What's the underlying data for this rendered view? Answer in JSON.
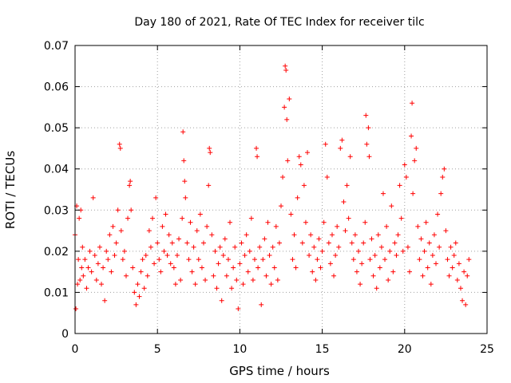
{
  "chart_data": {
    "type": "scatter",
    "title": "Day 180 of 2021, Rate Of TEC Index for receiver tilc",
    "xlabel": "GPS time / hours",
    "ylabel": "ROTI / TECUs",
    "xlim": [
      0,
      25
    ],
    "ylim": [
      0,
      0.07
    ],
    "xticks": [
      "0",
      "5",
      "10",
      "15",
      "20",
      "25"
    ],
    "yticks": [
      "0",
      "0.01",
      "0.02",
      "0.03",
      "0.04",
      "0.05",
      "0.06",
      "0.07"
    ],
    "grid": true,
    "legend": "none",
    "marker": "plus",
    "color": "#ff0000",
    "series": [
      {
        "values": [
          [
            0.0,
            0.024
          ],
          [
            0.05,
            0.006
          ],
          [
            0.1,
            0.031
          ],
          [
            0.15,
            0.012
          ],
          [
            0.2,
            0.018
          ],
          [
            0.25,
            0.028
          ],
          [
            0.3,
            0.013
          ],
          [
            0.35,
            0.03
          ],
          [
            0.4,
            0.016
          ],
          [
            0.45,
            0.021
          ],
          [
            0.5,
            0.014
          ],
          [
            0.6,
            0.018
          ],
          [
            0.7,
            0.011
          ],
          [
            0.8,
            0.016
          ],
          [
            0.9,
            0.02
          ],
          [
            1.0,
            0.015
          ],
          [
            1.1,
            0.033
          ],
          [
            1.2,
            0.019
          ],
          [
            1.3,
            0.013
          ],
          [
            1.4,
            0.017
          ],
          [
            1.5,
            0.021
          ],
          [
            1.6,
            0.012
          ],
          [
            1.7,
            0.016
          ],
          [
            1.8,
            0.008
          ],
          [
            1.9,
            0.02
          ],
          [
            2.0,
            0.018
          ],
          [
            2.1,
            0.024
          ],
          [
            2.2,
            0.015
          ],
          [
            2.3,
            0.026
          ],
          [
            2.4,
            0.019
          ],
          [
            2.5,
            0.022
          ],
          [
            2.6,
            0.03
          ],
          [
            2.7,
            0.046
          ],
          [
            2.75,
            0.045
          ],
          [
            2.8,
            0.025
          ],
          [
            2.9,
            0.018
          ],
          [
            3.0,
            0.02
          ],
          [
            3.1,
            0.014
          ],
          [
            3.2,
            0.028
          ],
          [
            3.3,
            0.036
          ],
          [
            3.35,
            0.037
          ],
          [
            3.4,
            0.03
          ],
          [
            3.5,
            0.016
          ],
          [
            3.6,
            0.01
          ],
          [
            3.7,
            0.007
          ],
          [
            3.8,
            0.012
          ],
          [
            3.9,
            0.009
          ],
          [
            4.0,
            0.015
          ],
          [
            4.1,
            0.018
          ],
          [
            4.2,
            0.011
          ],
          [
            4.3,
            0.019
          ],
          [
            4.4,
            0.014
          ],
          [
            4.5,
            0.025
          ],
          [
            4.6,
            0.021
          ],
          [
            4.7,
            0.028
          ],
          [
            4.8,
            0.017
          ],
          [
            4.9,
            0.033
          ],
          [
            5.0,
            0.022
          ],
          [
            5.1,
            0.018
          ],
          [
            5.2,
            0.015
          ],
          [
            5.3,
            0.026
          ],
          [
            5.4,
            0.02
          ],
          [
            5.5,
            0.029
          ],
          [
            5.6,
            0.019
          ],
          [
            5.7,
            0.024
          ],
          [
            5.8,
            0.017
          ],
          [
            5.9,
            0.022
          ],
          [
            6.0,
            0.016
          ],
          [
            6.1,
            0.012
          ],
          [
            6.2,
            0.019
          ],
          [
            6.3,
            0.023
          ],
          [
            6.4,
            0.013
          ],
          [
            6.5,
            0.028
          ],
          [
            6.55,
            0.049
          ],
          [
            6.6,
            0.042
          ],
          [
            6.65,
            0.037
          ],
          [
            6.7,
            0.033
          ],
          [
            6.8,
            0.022
          ],
          [
            6.9,
            0.018
          ],
          [
            7.0,
            0.027
          ],
          [
            7.1,
            0.015
          ],
          [
            7.2,
            0.021
          ],
          [
            7.3,
            0.012
          ],
          [
            7.4,
            0.025
          ],
          [
            7.5,
            0.018
          ],
          [
            7.6,
            0.029
          ],
          [
            7.7,
            0.016
          ],
          [
            7.8,
            0.022
          ],
          [
            7.9,
            0.013
          ],
          [
            8.0,
            0.026
          ],
          [
            8.1,
            0.036
          ],
          [
            8.15,
            0.045
          ],
          [
            8.2,
            0.044
          ],
          [
            8.3,
            0.024
          ],
          [
            8.4,
            0.014
          ],
          [
            8.5,
            0.02
          ],
          [
            8.6,
            0.011
          ],
          [
            8.7,
            0.017
          ],
          [
            8.8,
            0.021
          ],
          [
            8.9,
            0.008
          ],
          [
            9.0,
            0.019
          ],
          [
            9.1,
            0.023
          ],
          [
            9.2,
            0.014
          ],
          [
            9.3,
            0.018
          ],
          [
            9.4,
            0.027
          ],
          [
            9.5,
            0.011
          ],
          [
            9.6,
            0.016
          ],
          [
            9.7,
            0.021
          ],
          [
            9.8,
            0.013
          ],
          [
            9.9,
            0.006
          ],
          [
            10.0,
            0.017
          ],
          [
            10.1,
            0.022
          ],
          [
            10.2,
            0.012
          ],
          [
            10.3,
            0.019
          ],
          [
            10.4,
            0.024
          ],
          [
            10.5,
            0.015
          ],
          [
            10.6,
            0.02
          ],
          [
            10.7,
            0.028
          ],
          [
            10.8,
            0.013
          ],
          [
            10.9,
            0.018
          ],
          [
            11.0,
            0.045
          ],
          [
            11.05,
            0.043
          ],
          [
            11.1,
            0.016
          ],
          [
            11.2,
            0.021
          ],
          [
            11.3,
            0.007
          ],
          [
            11.4,
            0.018
          ],
          [
            11.5,
            0.023
          ],
          [
            11.6,
            0.014
          ],
          [
            11.7,
            0.027
          ],
          [
            11.8,
            0.019
          ],
          [
            11.9,
            0.012
          ],
          [
            12.0,
            0.021
          ],
          [
            12.1,
            0.016
          ],
          [
            12.2,
            0.026
          ],
          [
            12.3,
            0.013
          ],
          [
            12.4,
            0.022
          ],
          [
            12.5,
            0.031
          ],
          [
            12.6,
            0.038
          ],
          [
            12.7,
            0.055
          ],
          [
            12.75,
            0.065
          ],
          [
            12.8,
            0.064
          ],
          [
            12.85,
            0.052
          ],
          [
            12.9,
            0.042
          ],
          [
            13.0,
            0.057
          ],
          [
            13.1,
            0.029
          ],
          [
            13.2,
            0.018
          ],
          [
            13.3,
            0.024
          ],
          [
            13.4,
            0.016
          ],
          [
            13.5,
            0.033
          ],
          [
            13.6,
            0.043
          ],
          [
            13.7,
            0.041
          ],
          [
            13.8,
            0.022
          ],
          [
            13.9,
            0.036
          ],
          [
            14.0,
            0.027
          ],
          [
            14.1,
            0.044
          ],
          [
            14.2,
            0.019
          ],
          [
            14.3,
            0.024
          ],
          [
            14.4,
            0.015
          ],
          [
            14.5,
            0.021
          ],
          [
            14.6,
            0.013
          ],
          [
            14.7,
            0.018
          ],
          [
            14.8,
            0.023
          ],
          [
            14.9,
            0.016
          ],
          [
            15.0,
            0.02
          ],
          [
            15.1,
            0.027
          ],
          [
            15.2,
            0.046
          ],
          [
            15.3,
            0.038
          ],
          [
            15.4,
            0.022
          ],
          [
            15.5,
            0.017
          ],
          [
            15.6,
            0.024
          ],
          [
            15.7,
            0.014
          ],
          [
            15.8,
            0.019
          ],
          [
            15.9,
            0.026
          ],
          [
            16.0,
            0.021
          ],
          [
            16.1,
            0.045
          ],
          [
            16.2,
            0.047
          ],
          [
            16.3,
            0.032
          ],
          [
            16.4,
            0.025
          ],
          [
            16.5,
            0.036
          ],
          [
            16.6,
            0.028
          ],
          [
            16.7,
            0.043
          ],
          [
            16.8,
            0.022
          ],
          [
            16.9,
            0.018
          ],
          [
            17.0,
            0.024
          ],
          [
            17.1,
            0.015
          ],
          [
            17.2,
            0.02
          ],
          [
            17.3,
            0.012
          ],
          [
            17.4,
            0.017
          ],
          [
            17.5,
            0.022
          ],
          [
            17.6,
            0.027
          ],
          [
            17.65,
            0.053
          ],
          [
            17.7,
            0.046
          ],
          [
            17.8,
            0.05
          ],
          [
            17.85,
            0.043
          ],
          [
            17.9,
            0.018
          ],
          [
            18.0,
            0.023
          ],
          [
            18.1,
            0.014
          ],
          [
            18.2,
            0.019
          ],
          [
            18.3,
            0.011
          ],
          [
            18.4,
            0.024
          ],
          [
            18.5,
            0.016
          ],
          [
            18.6,
            0.021
          ],
          [
            18.7,
            0.034
          ],
          [
            18.8,
            0.018
          ],
          [
            18.9,
            0.026
          ],
          [
            19.0,
            0.013
          ],
          [
            19.1,
            0.02
          ],
          [
            19.2,
            0.031
          ],
          [
            19.3,
            0.015
          ],
          [
            19.4,
            0.022
          ],
          [
            19.5,
            0.019
          ],
          [
            19.6,
            0.024
          ],
          [
            19.7,
            0.036
          ],
          [
            19.8,
            0.028
          ],
          [
            19.9,
            0.02
          ],
          [
            20.0,
            0.041
          ],
          [
            20.1,
            0.038
          ],
          [
            20.2,
            0.021
          ],
          [
            20.3,
            0.015
          ],
          [
            20.4,
            0.048
          ],
          [
            20.45,
            0.056
          ],
          [
            20.5,
            0.034
          ],
          [
            20.6,
            0.042
          ],
          [
            20.7,
            0.045
          ],
          [
            20.8,
            0.026
          ],
          [
            20.9,
            0.018
          ],
          [
            21.0,
            0.023
          ],
          [
            21.1,
            0.014
          ],
          [
            21.2,
            0.02
          ],
          [
            21.3,
            0.027
          ],
          [
            21.4,
            0.016
          ],
          [
            21.5,
            0.022
          ],
          [
            21.6,
            0.012
          ],
          [
            21.7,
            0.019
          ],
          [
            21.8,
            0.024
          ],
          [
            21.9,
            0.017
          ],
          [
            22.0,
            0.029
          ],
          [
            22.1,
            0.021
          ],
          [
            22.2,
            0.034
          ],
          [
            22.3,
            0.038
          ],
          [
            22.4,
            0.04
          ],
          [
            22.5,
            0.025
          ],
          [
            22.6,
            0.018
          ],
          [
            22.7,
            0.014
          ],
          [
            22.8,
            0.021
          ],
          [
            22.9,
            0.016
          ],
          [
            23.0,
            0.019
          ],
          [
            23.1,
            0.022
          ],
          [
            23.2,
            0.013
          ],
          [
            23.3,
            0.017
          ],
          [
            23.4,
            0.011
          ],
          [
            23.5,
            0.008
          ],
          [
            23.6,
            0.015
          ],
          [
            23.7,
            0.007
          ],
          [
            23.8,
            0.014
          ],
          [
            23.9,
            0.018
          ]
        ]
      }
    ]
  }
}
